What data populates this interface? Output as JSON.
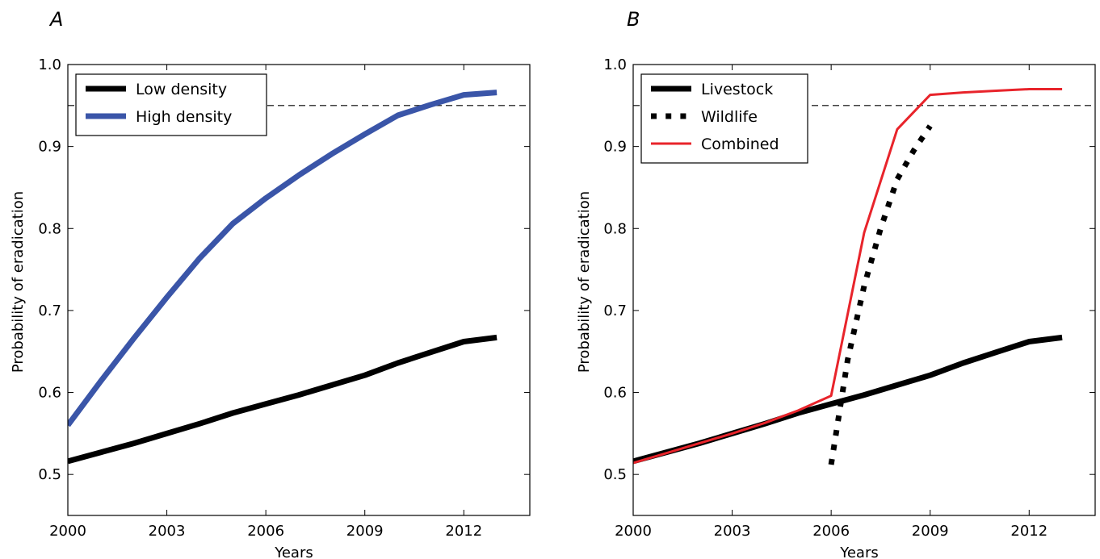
{
  "chart_data": [
    {
      "panel_label": "A",
      "type": "line",
      "xlabel": "Years",
      "ylabel": "Probability of eradication",
      "xlim": [
        2000,
        2014
      ],
      "ylim": [
        0.45,
        1.0
      ],
      "xticks": [
        2000,
        2003,
        2006,
        2009,
        2012
      ],
      "xtick_labels": [
        "2000",
        "2003",
        "2006",
        "2009",
        "2012"
      ],
      "yticks": [
        0.5,
        0.6,
        0.7,
        0.8,
        0.9,
        1.0
      ],
      "ytick_labels": [
        "0.5",
        "0.6",
        "0.7",
        "0.8",
        "0.9",
        "1.0"
      ],
      "reference_line": {
        "y": 0.95,
        "style": "dashed",
        "color": "#000000"
      },
      "legend_position": "top-left",
      "grid": false,
      "series": [
        {
          "name": "Low density",
          "color": "#000000",
          "style": "solid",
          "width": 7,
          "x": [
            2000,
            2001,
            2002,
            2003,
            2004,
            2005,
            2006,
            2007,
            2008,
            2009,
            2010,
            2011,
            2012,
            2013
          ],
          "y": [
            0.516,
            0.527,
            0.538,
            0.55,
            0.562,
            0.575,
            0.586,
            0.597,
            0.609,
            0.621,
            0.636,
            0.649,
            0.662,
            0.667
          ]
        },
        {
          "name": "High density",
          "color": "#3a55a8",
          "style": "solid",
          "width": 7,
          "x": [
            2000,
            2001,
            2002,
            2003,
            2004,
            2005,
            2006,
            2007,
            2008,
            2009,
            2010,
            2011,
            2012,
            2013
          ],
          "y": [
            0.56,
            0.614,
            0.666,
            0.716,
            0.764,
            0.806,
            0.837,
            0.865,
            0.891,
            0.915,
            0.938,
            0.951,
            0.963,
            0.966
          ]
        }
      ]
    },
    {
      "panel_label": "B",
      "type": "line",
      "xlabel": "Years",
      "ylabel": "Probability of eradication",
      "xlim": [
        2000,
        2014
      ],
      "ylim": [
        0.45,
        1.0
      ],
      "xticks": [
        2000,
        2003,
        2006,
        2009,
        2012
      ],
      "xtick_labels": [
        "2000",
        "2003",
        "2006",
        "2009",
        "2012"
      ],
      "yticks": [
        0.5,
        0.6,
        0.7,
        0.8,
        0.9,
        1.0
      ],
      "ytick_labels": [
        "0.5",
        "0.6",
        "0.7",
        "0.8",
        "0.9",
        "1.0"
      ],
      "reference_line": {
        "y": 0.95,
        "style": "dashed",
        "color": "#000000"
      },
      "legend_position": "top-left",
      "grid": false,
      "series": [
        {
          "name": "Livestock",
          "color": "#000000",
          "style": "solid",
          "width": 7,
          "x": [
            2000,
            2001,
            2002,
            2003,
            2004,
            2005,
            2006,
            2007,
            2008,
            2009,
            2010,
            2011,
            2012,
            2013
          ],
          "y": [
            0.516,
            0.527,
            0.538,
            0.55,
            0.562,
            0.575,
            0.586,
            0.597,
            0.609,
            0.621,
            0.636,
            0.649,
            0.662,
            0.667
          ]
        },
        {
          "name": "Wildlife",
          "color": "#000000",
          "style": "dotted",
          "width": 7,
          "x": [
            2006,
            2006.5,
            2007,
            2007.5,
            2008,
            2008.5,
            2009
          ],
          "y": [
            0.512,
            0.64,
            0.73,
            0.8,
            0.86,
            0.895,
            0.925
          ]
        },
        {
          "name": "Combined",
          "color": "#e8242b",
          "style": "solid",
          "width": 3,
          "x": [
            2000,
            2001,
            2002,
            2003,
            2004,
            2005,
            2006,
            2007,
            2008,
            2009,
            2010,
            2011,
            2012,
            2013
          ],
          "y": [
            0.514,
            0.526,
            0.538,
            0.55,
            0.563,
            0.578,
            0.596,
            0.795,
            0.921,
            0.963,
            0.966,
            0.968,
            0.97,
            0.97
          ]
        }
      ]
    }
  ]
}
